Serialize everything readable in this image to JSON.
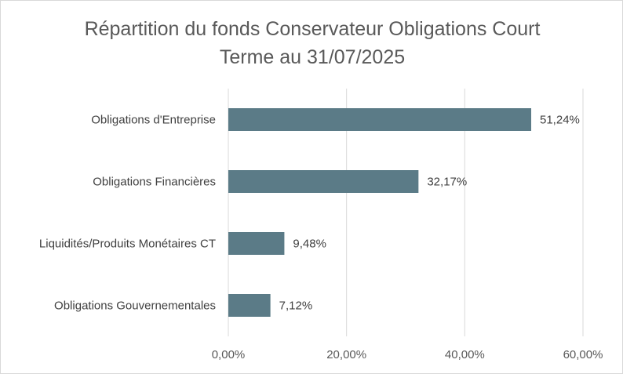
{
  "chart_data": {
    "type": "bar",
    "orientation": "horizontal",
    "title_lines": [
      "Répartition du fonds Conservateur Obligations Court",
      "Terme au 31/07/2025"
    ],
    "categories": [
      "Obligations d'Entreprise",
      "Obligations Financières",
      "Liquidités/Produits Monétaires CT",
      "Obligations Gouvernementales"
    ],
    "values": [
      51.24,
      32.17,
      9.48,
      7.12
    ],
    "value_labels": [
      "51,24%",
      "32,17%",
      "9,48%",
      "7,12%"
    ],
    "xlim": [
      0,
      60
    ],
    "xticks": [
      0,
      20,
      40,
      60
    ],
    "xtick_labels": [
      "0,00%",
      "20,00%",
      "40,00%",
      "60,00%"
    ],
    "bar_color": "#5b7b87",
    "grid": true,
    "legend": "none"
  }
}
